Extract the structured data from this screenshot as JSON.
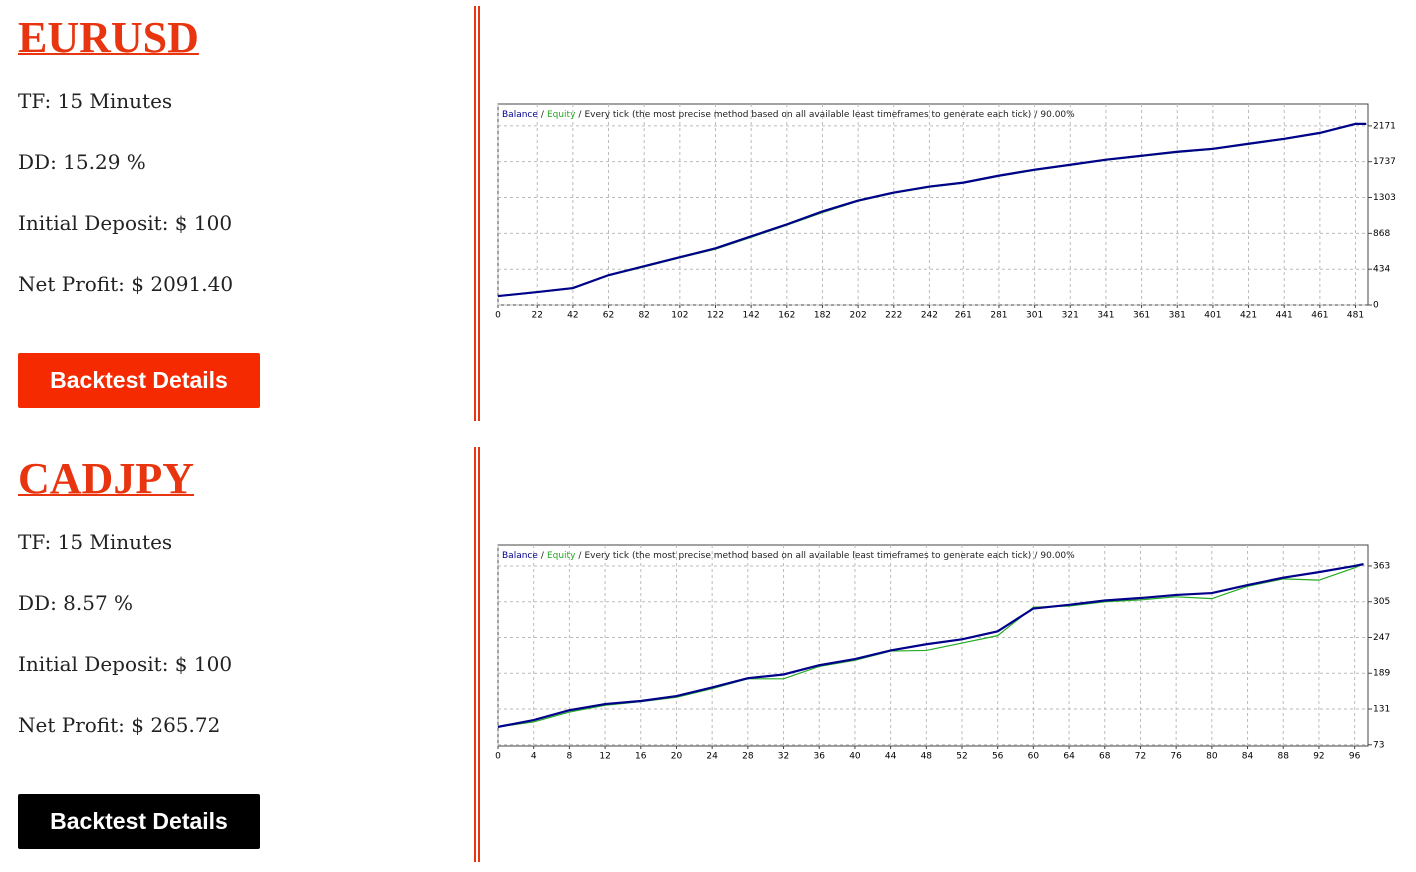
{
  "sections": [
    {
      "title": "EURUSD",
      "tf": "TF: 15 Minutes",
      "dd": "DD: 15.29 %",
      "deposit": "Initial Deposit: $ 100",
      "profit": "Net Profit: $ 2091.40",
      "button": "Backtest Details",
      "button_color": "#f52a00"
    },
    {
      "title": "CADJPY",
      "tf": "TF: 15 Minutes",
      "dd": "DD: 8.57 %",
      "deposit": "Initial Deposit: $ 100",
      "profit": "Net Profit: $ 265.72",
      "button": "Backtest Details",
      "button_color": "#000000"
    }
  ],
  "chart_data": [
    {
      "type": "line",
      "subtitle": "Every tick (the most precise method based on all available least timeframes to generate each tick)",
      "quality": "90.00%",
      "separator": "/",
      "x": [
        0,
        22,
        42,
        62,
        82,
        102,
        122,
        142,
        162,
        182,
        202,
        222,
        242,
        261,
        281,
        301,
        321,
        341,
        361,
        381,
        401,
        421,
        441,
        461,
        481,
        487
      ],
      "series": [
        {
          "name": "Balance",
          "color": "#00008b",
          "values": [
            108,
            157,
            205,
            362,
            470,
            579,
            687,
            832,
            977,
            1134,
            1266,
            1363,
            1435,
            1483,
            1568,
            1640,
            1700,
            1761,
            1809,
            1857,
            1893,
            1954,
            2014,
            2086,
            2195,
            2195
          ]
        },
        {
          "name": "Equity",
          "color": "#22aa22",
          "values": [
            105,
            152,
            200,
            355,
            462,
            572,
            676,
            820,
            968,
            1120,
            1258,
            1355,
            1428,
            1476,
            1560,
            1633,
            1694,
            1755,
            1802,
            1850,
            1887,
            1948,
            2008,
            2080,
            2190,
            2191
          ]
        }
      ],
      "xlim": [
        0,
        488
      ],
      "xticks": [
        0,
        22,
        42,
        62,
        82,
        102,
        122,
        142,
        162,
        182,
        202,
        222,
        242,
        261,
        281,
        301,
        321,
        341,
        361,
        381,
        401,
        421,
        441,
        461,
        481
      ],
      "ylim": [
        0,
        2436
      ],
      "yticks": [
        0,
        434,
        868,
        1303,
        1737,
        2171
      ],
      "grid": true
    },
    {
      "type": "line",
      "subtitle": "Every tick (the most precise method based on all available least timeframes to generate each tick)",
      "quality": "90.00%",
      "separator": "/",
      "x": [
        0,
        4,
        8,
        12,
        16,
        20,
        24,
        28,
        32,
        36,
        40,
        44,
        48,
        52,
        56,
        60,
        64,
        68,
        72,
        76,
        80,
        84,
        88,
        92,
        96,
        97
      ],
      "series": [
        {
          "name": "Balance",
          "color": "#00008b",
          "values": [
            102,
            113,
            129,
            139,
            144,
            152,
            166,
            181,
            187,
            202,
            212,
            226,
            236,
            244,
            257,
            294,
            300,
            307,
            311,
            316,
            319,
            332,
            344,
            353,
            363,
            366
          ]
        },
        {
          "name": "Equity",
          "color": "#22aa22",
          "values": [
            102,
            110,
            126,
            137,
            143,
            150,
            164,
            180,
            180,
            200,
            210,
            225,
            226,
            238,
            250,
            296,
            298,
            305,
            308,
            313,
            310,
            330,
            342,
            340,
            360,
            366
          ]
        }
      ],
      "xlim": [
        0,
        97.5
      ],
      "xticks": [
        0,
        4,
        8,
        12,
        16,
        20,
        24,
        28,
        32,
        36,
        40,
        44,
        48,
        52,
        56,
        60,
        64,
        68,
        72,
        76,
        80,
        84,
        88,
        92,
        96
      ],
      "ylim": [
        71,
        397
      ],
      "yticks": [
        73,
        131,
        189,
        247,
        305,
        363
      ],
      "grid": true
    }
  ]
}
